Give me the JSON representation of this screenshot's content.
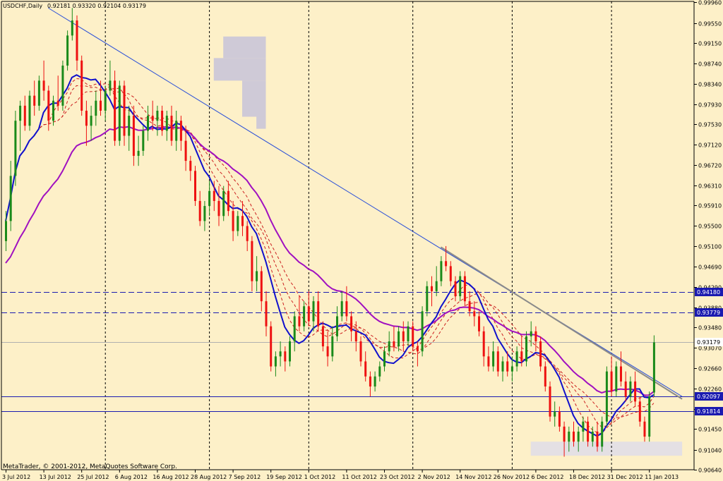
{
  "header": {
    "symbol": "USDCHF,Daily",
    "ohlc": "0.92181 0.93320 0.92104 0.93179"
  },
  "footer": {
    "copyright": "MetaTrader, © 2001-2012, MetaQuotes Software Corp."
  },
  "colors": {
    "background": "#fdf0c8",
    "bull": "#1a8a1a",
    "bear": "#ee1111",
    "ma_blue": "#1010cc",
    "ma_purple": "#a010c0",
    "envelope": "#cc2020",
    "trendline": "#2a4fd8",
    "trend_gray": "#8a8a8a",
    "hline": "#1b1bb0",
    "label_bg": "#1a1ab0",
    "grid": "#000000",
    "zone": "#cfcad7",
    "zone_light": "#e4e0e4"
  },
  "chart_data": {
    "type": "candlestick",
    "ylim": [
      0.9064,
      0.9998
    ],
    "x_range": [
      0,
      142
    ],
    "y_ticks": [
      "0.99960",
      "0.99550",
      "0.99150",
      "0.98740",
      "0.98340",
      "0.97930",
      "0.97530",
      "0.97120",
      "0.96720",
      "0.96310",
      "0.95910",
      "0.95500",
      "0.95100",
      "0.94690",
      "0.94290",
      "0.93880",
      "0.93480",
      "0.93070",
      "0.92660",
      "0.92260",
      "0.91850",
      "0.91450",
      "0.91040",
      "0.90640"
    ],
    "x_ticks": [
      {
        "label": "3 Jul 2012",
        "i": 0
      },
      {
        "label": "13 Jul 2012",
        "i": 8
      },
      {
        "label": "25 Jul 2012",
        "i": 16
      },
      {
        "label": "6 Aug 2012",
        "i": 24
      },
      {
        "label": "16 Aug 2012",
        "i": 32
      },
      {
        "label": "28 Aug 2012",
        "i": 40
      },
      {
        "label": "7 Sep 2012",
        "i": 48
      },
      {
        "label": "19 Sep 2012",
        "i": 56
      },
      {
        "label": "1 Oct 2012",
        "i": 64
      },
      {
        "label": "11 Oct 2012",
        "i": 72
      },
      {
        "label": "23 Oct 2012",
        "i": 80
      },
      {
        "label": "2 Nov 2012",
        "i": 88
      },
      {
        "label": "14 Nov 2012",
        "i": 96
      },
      {
        "label": "26 Nov 2012",
        "i": 104
      },
      {
        "label": "6 Dec 2012",
        "i": 112
      },
      {
        "label": "18 Dec 2012",
        "i": 120
      },
      {
        "label": "31 Dec 2012",
        "i": 128
      },
      {
        "label": "11 Jan 2013",
        "i": 136
      }
    ],
    "vgrid_indices": [
      21,
      43,
      64,
      86,
      107,
      128
    ],
    "horizontal_levels": [
      {
        "value": 0.9418,
        "label": "0.94180",
        "style": "dashed"
      },
      {
        "value": 0.93779,
        "label": "0.93779",
        "style": "dashed"
      },
      {
        "value": 0.92097,
        "label": "0.92097",
        "style": "solid"
      },
      {
        "value": 0.91814,
        "label": "0.91814",
        "style": "solid"
      }
    ],
    "current_price": {
      "value": 0.93179,
      "label": "0.93179"
    },
    "trendlines": [
      {
        "from": [
          9,
          0.9985
        ],
        "to": [
          143,
          0.921
        ],
        "color_key": "trendline",
        "width": 1
      },
      {
        "from": [
          92,
          0.9508
        ],
        "to": [
          143,
          0.9205
        ],
        "color_key": "trend_gray",
        "width": 2
      }
    ],
    "zones": [
      {
        "x": [
          44,
          55
        ],
        "y": [
          0.9885,
          0.984
        ],
        "color_key": "zone"
      },
      {
        "x": [
          46,
          55
        ],
        "y": [
          0.9928,
          0.9885
        ],
        "color_key": "zone"
      },
      {
        "x": [
          50,
          55
        ],
        "y": [
          0.984,
          0.9768
        ],
        "color_key": "zone"
      },
      {
        "x": [
          53,
          55
        ],
        "y": [
          0.9768,
          0.9744
        ],
        "color_key": "zone"
      },
      {
        "x": [
          111,
          143
        ],
        "y": [
          0.912,
          0.9092
        ],
        "color_key": "zone_light"
      }
    ],
    "candles": [
      {
        "o": 0.952,
        "h": 0.958,
        "l": 0.95,
        "c": 0.956
      },
      {
        "o": 0.956,
        "h": 0.968,
        "l": 0.954,
        "c": 0.965
      },
      {
        "o": 0.965,
        "h": 0.978,
        "l": 0.963,
        "c": 0.976
      },
      {
        "o": 0.976,
        "h": 0.98,
        "l": 0.97,
        "c": 0.979
      },
      {
        "o": 0.979,
        "h": 0.981,
        "l": 0.974,
        "c": 0.975
      },
      {
        "o": 0.975,
        "h": 0.982,
        "l": 0.974,
        "c": 0.981
      },
      {
        "o": 0.981,
        "h": 0.984,
        "l": 0.977,
        "c": 0.979
      },
      {
        "o": 0.979,
        "h": 0.985,
        "l": 0.978,
        "c": 0.984
      },
      {
        "o": 0.984,
        "h": 0.988,
        "l": 0.98,
        "c": 0.982
      },
      {
        "o": 0.982,
        "h": 0.983,
        "l": 0.974,
        "c": 0.976
      },
      {
        "o": 0.976,
        "h": 0.981,
        "l": 0.975,
        "c": 0.98
      },
      {
        "o": 0.98,
        "h": 0.985,
        "l": 0.978,
        "c": 0.979
      },
      {
        "o": 0.979,
        "h": 0.988,
        "l": 0.978,
        "c": 0.987
      },
      {
        "o": 0.987,
        "h": 0.994,
        "l": 0.986,
        "c": 0.993
      },
      {
        "o": 0.993,
        "h": 0.9985,
        "l": 0.992,
        "c": 0.996
      },
      {
        "o": 0.996,
        "h": 0.997,
        "l": 0.986,
        "c": 0.988
      },
      {
        "o": 0.988,
        "h": 0.989,
        "l": 0.977,
        "c": 0.978
      },
      {
        "o": 0.978,
        "h": 0.98,
        "l": 0.971,
        "c": 0.975
      },
      {
        "o": 0.975,
        "h": 0.979,
        "l": 0.972,
        "c": 0.977
      },
      {
        "o": 0.977,
        "h": 0.982,
        "l": 0.975,
        "c": 0.98
      },
      {
        "o": 0.98,
        "h": 0.984,
        "l": 0.977,
        "c": 0.978
      },
      {
        "o": 0.978,
        "h": 0.983,
        "l": 0.976,
        "c": 0.982
      },
      {
        "o": 0.982,
        "h": 0.988,
        "l": 0.981,
        "c": 0.984
      },
      {
        "o": 0.984,
        "h": 0.986,
        "l": 0.971,
        "c": 0.972
      },
      {
        "o": 0.972,
        "h": 0.984,
        "l": 0.971,
        "c": 0.983
      },
      {
        "o": 0.983,
        "h": 0.984,
        "l": 0.971,
        "c": 0.973
      },
      {
        "o": 0.973,
        "h": 0.979,
        "l": 0.97,
        "c": 0.977
      },
      {
        "o": 0.977,
        "h": 0.979,
        "l": 0.967,
        "c": 0.969
      },
      {
        "o": 0.969,
        "h": 0.973,
        "l": 0.967,
        "c": 0.97
      },
      {
        "o": 0.97,
        "h": 0.975,
        "l": 0.969,
        "c": 0.974
      },
      {
        "o": 0.974,
        "h": 0.979,
        "l": 0.972,
        "c": 0.977
      },
      {
        "o": 0.977,
        "h": 0.98,
        "l": 0.974,
        "c": 0.976
      },
      {
        "o": 0.976,
        "h": 0.979,
        "l": 0.973,
        "c": 0.978
      },
      {
        "o": 0.978,
        "h": 0.979,
        "l": 0.973,
        "c": 0.974
      },
      {
        "o": 0.974,
        "h": 0.978,
        "l": 0.972,
        "c": 0.977
      },
      {
        "o": 0.977,
        "h": 0.979,
        "l": 0.971,
        "c": 0.972
      },
      {
        "o": 0.972,
        "h": 0.978,
        "l": 0.97,
        "c": 0.976
      },
      {
        "o": 0.976,
        "h": 0.977,
        "l": 0.97,
        "c": 0.972
      },
      {
        "o": 0.972,
        "h": 0.975,
        "l": 0.966,
        "c": 0.968
      },
      {
        "o": 0.968,
        "h": 0.969,
        "l": 0.964,
        "c": 0.966
      },
      {
        "o": 0.966,
        "h": 0.967,
        "l": 0.959,
        "c": 0.96
      },
      {
        "o": 0.96,
        "h": 0.962,
        "l": 0.955,
        "c": 0.956
      },
      {
        "o": 0.956,
        "h": 0.96,
        "l": 0.954,
        "c": 0.959
      },
      {
        "o": 0.959,
        "h": 0.964,
        "l": 0.957,
        "c": 0.962
      },
      {
        "o": 0.962,
        "h": 0.964,
        "l": 0.958,
        "c": 0.96
      },
      {
        "o": 0.96,
        "h": 0.963,
        "l": 0.955,
        "c": 0.957
      },
      {
        "o": 0.957,
        "h": 0.963,
        "l": 0.956,
        "c": 0.962
      },
      {
        "o": 0.962,
        "h": 0.964,
        "l": 0.957,
        "c": 0.958
      },
      {
        "o": 0.958,
        "h": 0.96,
        "l": 0.952,
        "c": 0.954
      },
      {
        "o": 0.954,
        "h": 0.958,
        "l": 0.953,
        "c": 0.957
      },
      {
        "o": 0.957,
        "h": 0.96,
        "l": 0.953,
        "c": 0.955
      },
      {
        "o": 0.955,
        "h": 0.956,
        "l": 0.95,
        "c": 0.952
      },
      {
        "o": 0.952,
        "h": 0.953,
        "l": 0.942,
        "c": 0.944
      },
      {
        "o": 0.944,
        "h": 0.949,
        "l": 0.942,
        "c": 0.946
      },
      {
        "o": 0.946,
        "h": 0.947,
        "l": 0.938,
        "c": 0.94
      },
      {
        "o": 0.94,
        "h": 0.942,
        "l": 0.933,
        "c": 0.935
      },
      {
        "o": 0.935,
        "h": 0.936,
        "l": 0.926,
        "c": 0.927
      },
      {
        "o": 0.927,
        "h": 0.93,
        "l": 0.925,
        "c": 0.929
      },
      {
        "o": 0.929,
        "h": 0.932,
        "l": 0.927,
        "c": 0.93
      },
      {
        "o": 0.93,
        "h": 0.931,
        "l": 0.926,
        "c": 0.928
      },
      {
        "o": 0.928,
        "h": 0.933,
        "l": 0.927,
        "c": 0.932
      },
      {
        "o": 0.932,
        "h": 0.938,
        "l": 0.93,
        "c": 0.937
      },
      {
        "o": 0.937,
        "h": 0.941,
        "l": 0.934,
        "c": 0.935
      },
      {
        "o": 0.935,
        "h": 0.94,
        "l": 0.934,
        "c": 0.939
      },
      {
        "o": 0.939,
        "h": 0.942,
        "l": 0.935,
        "c": 0.936
      },
      {
        "o": 0.936,
        "h": 0.941,
        "l": 0.934,
        "c": 0.94
      },
      {
        "o": 0.94,
        "h": 0.942,
        "l": 0.934,
        "c": 0.935
      },
      {
        "o": 0.935,
        "h": 0.936,
        "l": 0.93,
        "c": 0.931
      },
      {
        "o": 0.931,
        "h": 0.934,
        "l": 0.927,
        "c": 0.929
      },
      {
        "o": 0.929,
        "h": 0.935,
        "l": 0.928,
        "c": 0.933
      },
      {
        "o": 0.933,
        "h": 0.939,
        "l": 0.932,
        "c": 0.937
      },
      {
        "o": 0.937,
        "h": 0.942,
        "l": 0.936,
        "c": 0.94
      },
      {
        "o": 0.94,
        "h": 0.943,
        "l": 0.936,
        "c": 0.937
      },
      {
        "o": 0.937,
        "h": 0.938,
        "l": 0.932,
        "c": 0.934
      },
      {
        "o": 0.934,
        "h": 0.936,
        "l": 0.93,
        "c": 0.932
      },
      {
        "o": 0.932,
        "h": 0.933,
        "l": 0.927,
        "c": 0.928
      },
      {
        "o": 0.928,
        "h": 0.93,
        "l": 0.924,
        "c": 0.925
      },
      {
        "o": 0.925,
        "h": 0.926,
        "l": 0.921,
        "c": 0.923
      },
      {
        "o": 0.923,
        "h": 0.926,
        "l": 0.922,
        "c": 0.925
      },
      {
        "o": 0.925,
        "h": 0.928,
        "l": 0.924,
        "c": 0.927
      },
      {
        "o": 0.927,
        "h": 0.931,
        "l": 0.926,
        "c": 0.93
      },
      {
        "o": 0.93,
        "h": 0.934,
        "l": 0.929,
        "c": 0.932
      },
      {
        "o": 0.932,
        "h": 0.935,
        "l": 0.93,
        "c": 0.931
      },
      {
        "o": 0.931,
        "h": 0.935,
        "l": 0.93,
        "c": 0.934
      },
      {
        "o": 0.934,
        "h": 0.936,
        "l": 0.93,
        "c": 0.932
      },
      {
        "o": 0.932,
        "h": 0.936,
        "l": 0.931,
        "c": 0.935
      },
      {
        "o": 0.935,
        "h": 0.936,
        "l": 0.93,
        "c": 0.931
      },
      {
        "o": 0.931,
        "h": 0.932,
        "l": 0.927,
        "c": 0.93
      },
      {
        "o": 0.93,
        "h": 0.939,
        "l": 0.929,
        "c": 0.938
      },
      {
        "o": 0.938,
        "h": 0.944,
        "l": 0.937,
        "c": 0.943
      },
      {
        "o": 0.943,
        "h": 0.945,
        "l": 0.939,
        "c": 0.942
      },
      {
        "o": 0.942,
        "h": 0.947,
        "l": 0.941,
        "c": 0.944
      },
      {
        "o": 0.944,
        "h": 0.949,
        "l": 0.943,
        "c": 0.948
      },
      {
        "o": 0.948,
        "h": 0.951,
        "l": 0.946,
        "c": 0.947
      },
      {
        "o": 0.947,
        "h": 0.948,
        "l": 0.943,
        "c": 0.944
      },
      {
        "o": 0.944,
        "h": 0.945,
        "l": 0.94,
        "c": 0.941
      },
      {
        "o": 0.941,
        "h": 0.946,
        "l": 0.94,
        "c": 0.945
      },
      {
        "o": 0.945,
        "h": 0.946,
        "l": 0.939,
        "c": 0.94
      },
      {
        "o": 0.94,
        "h": 0.942,
        "l": 0.937,
        "c": 0.938
      },
      {
        "o": 0.938,
        "h": 0.94,
        "l": 0.935,
        "c": 0.937
      },
      {
        "o": 0.937,
        "h": 0.938,
        "l": 0.933,
        "c": 0.934
      },
      {
        "o": 0.934,
        "h": 0.935,
        "l": 0.927,
        "c": 0.929
      },
      {
        "o": 0.929,
        "h": 0.931,
        "l": 0.926,
        "c": 0.927
      },
      {
        "o": 0.927,
        "h": 0.932,
        "l": 0.926,
        "c": 0.93
      },
      {
        "o": 0.93,
        "h": 0.931,
        "l": 0.925,
        "c": 0.926
      },
      {
        "o": 0.926,
        "h": 0.929,
        "l": 0.924,
        "c": 0.928
      },
      {
        "o": 0.928,
        "h": 0.93,
        "l": 0.925,
        "c": 0.926
      },
      {
        "o": 0.926,
        "h": 0.929,
        "l": 0.924,
        "c": 0.927
      },
      {
        "o": 0.927,
        "h": 0.931,
        "l": 0.926,
        "c": 0.93
      },
      {
        "o": 0.93,
        "h": 0.933,
        "l": 0.927,
        "c": 0.928
      },
      {
        "o": 0.928,
        "h": 0.934,
        "l": 0.927,
        "c": 0.933
      },
      {
        "o": 0.933,
        "h": 0.936,
        "l": 0.931,
        "c": 0.934
      },
      {
        "o": 0.934,
        "h": 0.935,
        "l": 0.93,
        "c": 0.932
      },
      {
        "o": 0.932,
        "h": 0.933,
        "l": 0.926,
        "c": 0.927
      },
      {
        "o": 0.927,
        "h": 0.928,
        "l": 0.922,
        "c": 0.923
      },
      {
        "o": 0.923,
        "h": 0.924,
        "l": 0.916,
        "c": 0.917
      },
      {
        "o": 0.917,
        "h": 0.92,
        "l": 0.915,
        "c": 0.918
      },
      {
        "o": 0.918,
        "h": 0.919,
        "l": 0.914,
        "c": 0.915
      },
      {
        "o": 0.915,
        "h": 0.916,
        "l": 0.909,
        "c": 0.912
      },
      {
        "o": 0.912,
        "h": 0.915,
        "l": 0.91,
        "c": 0.914
      },
      {
        "o": 0.914,
        "h": 0.916,
        "l": 0.911,
        "c": 0.912
      },
      {
        "o": 0.912,
        "h": 0.915,
        "l": 0.91,
        "c": 0.914
      },
      {
        "o": 0.914,
        "h": 0.917,
        "l": 0.912,
        "c": 0.916
      },
      {
        "o": 0.916,
        "h": 0.917,
        "l": 0.911,
        "c": 0.912
      },
      {
        "o": 0.912,
        "h": 0.915,
        "l": 0.911,
        "c": 0.914
      },
      {
        "o": 0.914,
        "h": 0.916,
        "l": 0.91,
        "c": 0.911
      },
      {
        "o": 0.911,
        "h": 0.917,
        "l": 0.91,
        "c": 0.916
      },
      {
        "o": 0.916,
        "h": 0.927,
        "l": 0.915,
        "c": 0.926
      },
      {
        "o": 0.926,
        "h": 0.929,
        "l": 0.921,
        "c": 0.922
      },
      {
        "o": 0.922,
        "h": 0.928,
        "l": 0.921,
        "c": 0.927
      },
      {
        "o": 0.927,
        "h": 0.93,
        "l": 0.923,
        "c": 0.924
      },
      {
        "o": 0.924,
        "h": 0.926,
        "l": 0.92,
        "c": 0.921
      },
      {
        "o": 0.921,
        "h": 0.925,
        "l": 0.92,
        "c": 0.924
      },
      {
        "o": 0.924,
        "h": 0.926,
        "l": 0.919,
        "c": 0.92
      },
      {
        "o": 0.92,
        "h": 0.921,
        "l": 0.915,
        "c": 0.916
      },
      {
        "o": 0.916,
        "h": 0.917,
        "l": 0.912,
        "c": 0.913
      },
      {
        "o": 0.913,
        "h": 0.922,
        "l": 0.912,
        "c": 0.921
      },
      {
        "o": 0.9218,
        "h": 0.9332,
        "l": 0.921,
        "c": 0.9318
      }
    ]
  }
}
